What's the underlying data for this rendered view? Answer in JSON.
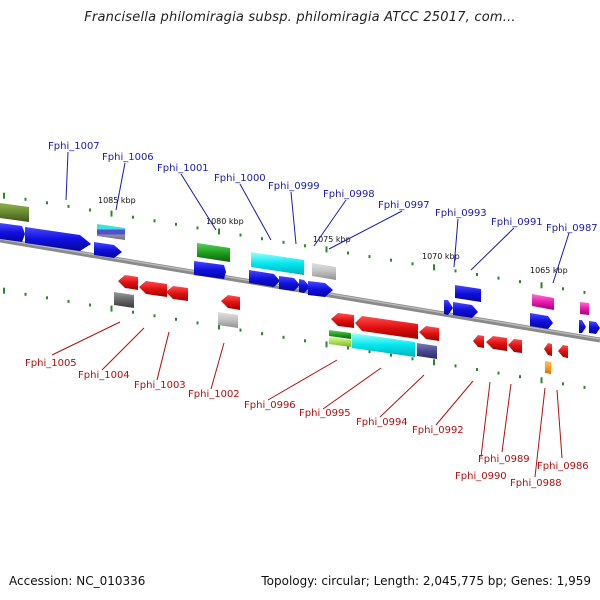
{
  "title": "Francisella philomiragia subsp. philomiragia ATCC 25017, com...",
  "footer": {
    "accession": "Accession: NC_010336",
    "summary": "Topology: circular; Length: 2,045,775 bp; Genes: 1,959"
  },
  "scale_labels": [
    "1085 kbp",
    "1080 kbp",
    "1075 kbp",
    "1070 kbp",
    "1065 kbp"
  ],
  "gene_labels_top": [
    "Fphi_1007",
    "Fphi_1006",
    "Fphi_1001",
    "Fphi_1000",
    "Fphi_0999",
    "Fphi_0998",
    "Fphi_0997",
    "Fphi_0993",
    "Fphi_0991",
    "Fphi_0987"
  ],
  "gene_labels_bottom": [
    "Fphi_1005",
    "Fphi_1004",
    "Fphi_1003",
    "Fphi_1002",
    "Fphi_0996",
    "Fphi_0995",
    "Fphi_0994",
    "Fphi_0992",
    "Fphi_0990",
    "Fphi_0989",
    "Fphi_0988",
    "Fphi_0986"
  ],
  "colors": {
    "forward_cds": "#1010e0",
    "reverse_cds": "#e01010",
    "backbone": "#888888",
    "tick": "#2a8a2a",
    "label_top": "#1a1ab0",
    "label_bottom": "#b01010"
  }
}
